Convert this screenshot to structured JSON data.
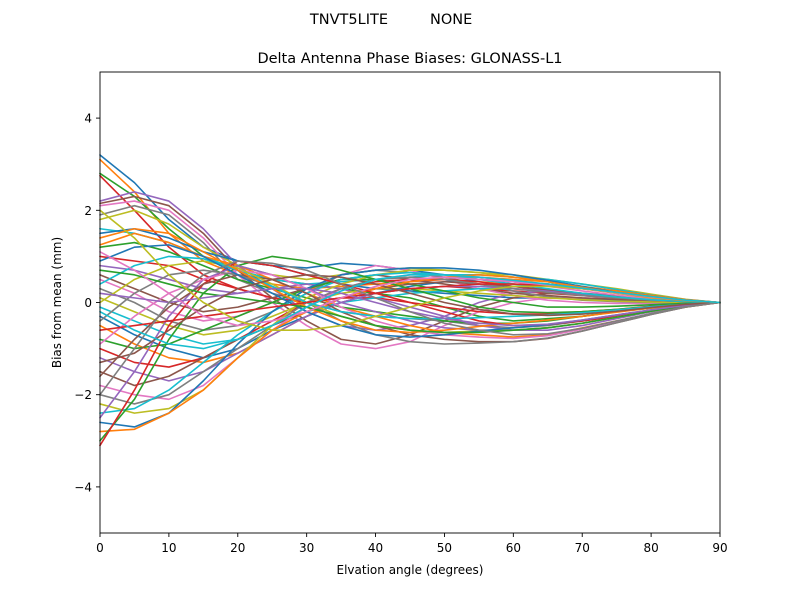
{
  "figure": {
    "suptitle_left": "TNVT5LITE",
    "suptitle_right": "NONE"
  },
  "chart_data": {
    "type": "line",
    "title": "Delta Antenna Phase Biases: GLONASS-L1",
    "xlabel": "Elvation angle (degrees)",
    "ylabel": "Bias from mean (mm)",
    "xlim": [
      0,
      90
    ],
    "ylim": [
      -5,
      5
    ],
    "xticks": [
      0,
      10,
      20,
      30,
      40,
      50,
      60,
      70,
      80,
      90
    ],
    "xtick_labels": [
      "0",
      "10",
      "20",
      "30",
      "40",
      "50",
      "60",
      "70",
      "80",
      "90"
    ],
    "yticks": [
      -4,
      -2,
      0,
      2,
      4
    ],
    "ytick_labels": [
      "−4",
      "−2",
      "0",
      "2",
      "4"
    ],
    "grid": false,
    "legend": "none",
    "colors": [
      "#1f77b4",
      "#ff7f0e",
      "#2ca02c",
      "#d62728",
      "#9467bd",
      "#8c564b",
      "#e377c2",
      "#7f7f7f",
      "#bcbd22",
      "#17becf"
    ],
    "x": [
      0,
      5,
      10,
      15,
      20,
      25,
      30,
      35,
      40,
      45,
      50,
      55,
      60,
      65,
      70,
      75,
      80,
      85,
      90
    ],
    "series": [
      {
        "values": [
          3.2,
          2.6,
          1.8,
          1.2,
          0.9,
          0.8,
          0.6,
          0.4,
          0.3,
          0.25,
          0.2,
          0.15,
          0.1,
          0.1,
          0.08,
          0.05,
          0.03,
          0.01,
          0
        ]
      },
      {
        "values": [
          3.1,
          2.4,
          1.5,
          0.9,
          0.6,
          0.4,
          0.3,
          0.35,
          0.4,
          0.45,
          0.5,
          0.45,
          0.4,
          0.35,
          0.3,
          0.2,
          0.12,
          0.05,
          0
        ]
      },
      {
        "values": [
          2.8,
          2.3,
          1.6,
          1.0,
          0.7,
          0.5,
          0.4,
          0.3,
          0.2,
          0.1,
          -0.1,
          -0.3,
          -0.4,
          -0.35,
          -0.3,
          -0.2,
          -0.1,
          -0.05,
          0
        ]
      },
      {
        "values": [
          2.75,
          2.0,
          1.2,
          0.6,
          0.3,
          0.1,
          0.0,
          0.1,
          0.2,
          0.3,
          0.35,
          0.3,
          0.25,
          0.2,
          0.15,
          0.1,
          0.05,
          0.02,
          0
        ]
      },
      {
        "values": [
          2.2,
          2.4,
          2.2,
          1.6,
          0.8,
          0.3,
          -0.2,
          -0.5,
          -0.6,
          -0.5,
          -0.3,
          0.0,
          0.2,
          0.25,
          0.2,
          0.15,
          0.08,
          0.03,
          0
        ]
      },
      {
        "values": [
          2.15,
          2.3,
          2.1,
          1.5,
          0.7,
          0.1,
          -0.4,
          -0.8,
          -0.9,
          -0.7,
          -0.4,
          -0.1,
          0.1,
          0.2,
          0.18,
          0.12,
          0.07,
          0.03,
          0
        ]
      },
      {
        "values": [
          2.1,
          2.2,
          2.0,
          1.4,
          0.6,
          0.0,
          -0.5,
          -0.9,
          -1.0,
          -0.85,
          -0.5,
          -0.2,
          0.0,
          0.1,
          0.1,
          0.08,
          0.05,
          0.02,
          0
        ]
      },
      {
        "values": [
          1.9,
          2.1,
          1.9,
          1.3,
          0.5,
          0.2,
          0.0,
          -0.2,
          -0.3,
          -0.35,
          -0.4,
          -0.5,
          -0.55,
          -0.5,
          -0.4,
          -0.3,
          -0.2,
          -0.08,
          0
        ]
      },
      {
        "values": [
          1.8,
          2.0,
          1.7,
          1.2,
          0.8,
          0.6,
          0.5,
          0.6,
          0.7,
          0.75,
          0.7,
          0.65,
          0.6,
          0.5,
          0.4,
          0.3,
          0.18,
          0.07,
          0
        ]
      },
      {
        "values": [
          1.6,
          1.5,
          1.3,
          1.0,
          0.7,
          0.5,
          0.4,
          0.45,
          0.5,
          0.55,
          0.6,
          0.6,
          0.55,
          0.5,
          0.4,
          0.28,
          0.16,
          0.06,
          0
        ]
      },
      {
        "values": [
          1.5,
          1.6,
          1.4,
          1.1,
          0.9,
          0.8,
          0.75,
          0.85,
          0.8,
          0.7,
          0.6,
          0.5,
          0.45,
          0.4,
          0.33,
          0.25,
          0.15,
          0.06,
          0
        ]
      },
      {
        "values": [
          1.25,
          1.5,
          1.3,
          1.0,
          0.8,
          0.5,
          0.2,
          -0.1,
          -0.3,
          -0.5,
          -0.65,
          -0.7,
          -0.75,
          -0.7,
          -0.55,
          -0.4,
          -0.25,
          -0.1,
          0
        ]
      },
      {
        "values": [
          1.2,
          1.3,
          1.1,
          0.8,
          0.5,
          0.3,
          0.1,
          -0.1,
          -0.2,
          -0.3,
          -0.4,
          -0.45,
          -0.45,
          -0.4,
          -0.3,
          -0.2,
          -0.12,
          -0.05,
          0
        ]
      },
      {
        "values": [
          1.0,
          0.9,
          0.8,
          0.5,
          0.3,
          0.1,
          0.0,
          0.1,
          0.1,
          0.0,
          -0.1,
          -0.2,
          -0.25,
          -0.25,
          -0.2,
          -0.15,
          -0.08,
          -0.03,
          0
        ]
      },
      {
        "values": [
          0.8,
          0.7,
          0.5,
          0.3,
          0.2,
          0.3,
          0.4,
          0.3,
          0.1,
          -0.1,
          -0.3,
          -0.5,
          -0.6,
          -0.6,
          -0.5,
          -0.35,
          -0.2,
          -0.08,
          0
        ]
      },
      {
        "values": [
          0.6,
          0.3,
          0.0,
          -0.2,
          -0.1,
          0.1,
          0.3,
          0.5,
          0.6,
          0.5,
          0.4,
          0.3,
          0.2,
          0.15,
          0.1,
          0.07,
          0.04,
          0.02,
          0
        ]
      },
      {
        "values": [
          0.5,
          0.2,
          -0.2,
          -0.4,
          -0.3,
          0.0,
          0.3,
          0.6,
          0.8,
          0.7,
          0.5,
          0.3,
          0.15,
          0.05,
          0.0,
          -0.02,
          -0.02,
          -0.01,
          0
        ]
      },
      {
        "values": [
          0.3,
          0.0,
          -0.4,
          -0.6,
          -0.5,
          -0.2,
          0.2,
          0.6,
          0.7,
          0.65,
          0.55,
          0.4,
          0.25,
          0.12,
          0.05,
          0.02,
          0.0,
          0.0,
          0
        ]
      },
      {
        "values": [
          0.1,
          -0.2,
          -0.5,
          -0.7,
          -0.6,
          -0.3,
          0.0,
          0.2,
          0.3,
          0.3,
          0.25,
          0.2,
          0.15,
          0.1,
          0.06,
          0.03,
          0.01,
          0.0,
          0
        ]
      },
      {
        "values": [
          -0.1,
          -0.4,
          -0.7,
          -0.9,
          -0.8,
          -0.5,
          -0.2,
          0.0,
          0.1,
          0.2,
          0.25,
          0.3,
          0.3,
          0.25,
          0.2,
          0.14,
          0.08,
          0.03,
          0
        ]
      },
      {
        "values": [
          -0.3,
          -0.7,
          -1.0,
          -1.2,
          -1.0,
          -0.6,
          -0.3,
          0.0,
          0.2,
          0.35,
          0.45,
          0.5,
          0.45,
          0.4,
          0.32,
          0.23,
          0.14,
          0.05,
          0
        ]
      },
      {
        "values": [
          -0.5,
          -0.9,
          -1.2,
          -1.3,
          -1.1,
          -0.7,
          -0.3,
          0.1,
          0.3,
          0.45,
          0.55,
          0.55,
          0.5,
          0.45,
          0.35,
          0.25,
          0.15,
          0.06,
          0
        ]
      },
      {
        "values": [
          -0.8,
          -1.0,
          -0.9,
          -0.6,
          -0.3,
          0.0,
          0.3,
          0.5,
          0.5,
          0.4,
          0.25,
          0.1,
          0.0,
          -0.1,
          -0.1,
          -0.08,
          -0.05,
          -0.02,
          0
        ]
      },
      {
        "values": [
          -1.0,
          -1.3,
          -1.4,
          -1.2,
          -0.8,
          -0.4,
          0.0,
          0.3,
          0.45,
          0.5,
          0.5,
          0.45,
          0.35,
          0.25,
          0.17,
          0.1,
          0.05,
          0.02,
          0
        ]
      },
      {
        "values": [
          -1.2,
          -1.5,
          -1.7,
          -1.5,
          -1.1,
          -0.7,
          -0.3,
          0.0,
          0.2,
          0.3,
          0.35,
          0.35,
          0.3,
          0.25,
          0.18,
          0.12,
          0.06,
          0.02,
          0
        ]
      },
      {
        "values": [
          -1.5,
          -1.8,
          -1.6,
          -1.2,
          -0.8,
          -0.5,
          -0.2,
          0.1,
          0.3,
          0.4,
          0.45,
          0.4,
          0.35,
          0.28,
          0.2,
          0.13,
          0.07,
          0.03,
          0
        ]
      },
      {
        "values": [
          -1.8,
          -2.0,
          -2.1,
          -1.8,
          -1.2,
          -0.6,
          -0.1,
          0.3,
          0.5,
          0.6,
          0.6,
          0.55,
          0.45,
          0.35,
          0.25,
          0.16,
          0.08,
          0.03,
          0
        ]
      },
      {
        "values": [
          -2.0,
          -2.2,
          -2.0,
          -1.5,
          -1.0,
          -0.5,
          0.0,
          0.3,
          0.5,
          0.55,
          0.5,
          0.4,
          0.3,
          0.22,
          0.15,
          0.1,
          0.05,
          0.02,
          0
        ]
      },
      {
        "values": [
          -2.2,
          -2.4,
          -2.3,
          -1.9,
          -1.2,
          -0.5,
          0.1,
          0.4,
          0.6,
          0.7,
          0.7,
          0.65,
          0.55,
          0.45,
          0.32,
          0.2,
          0.1,
          0.04,
          0
        ]
      },
      {
        "values": [
          -2.4,
          -2.3,
          -1.9,
          -1.3,
          -0.7,
          -0.2,
          0.2,
          0.5,
          0.6,
          0.65,
          0.6,
          0.5,
          0.4,
          0.3,
          0.2,
          0.12,
          0.06,
          0.02,
          0
        ]
      },
      {
        "values": [
          -2.6,
          -2.7,
          -2.4,
          -1.7,
          -0.9,
          -0.2,
          0.3,
          0.6,
          0.7,
          0.75,
          0.75,
          0.7,
          0.6,
          0.48,
          0.35,
          0.22,
          0.12,
          0.05,
          0
        ]
      },
      {
        "values": [
          -2.8,
          -2.75,
          -2.4,
          -1.9,
          -1.2,
          -0.6,
          -0.2,
          0.1,
          0.3,
          0.45,
          0.55,
          0.6,
          0.55,
          0.45,
          0.33,
          0.21,
          0.11,
          0.04,
          0
        ]
      },
      {
        "values": [
          -3.0,
          -2.1,
          -0.8,
          0.2,
          0.8,
          1.0,
          0.9,
          0.7,
          0.5,
          0.3,
          0.1,
          -0.1,
          -0.2,
          -0.22,
          -0.2,
          -0.15,
          -0.09,
          -0.04,
          0
        ]
      },
      {
        "values": [
          -3.1,
          -1.9,
          -0.5,
          0.4,
          0.9,
          0.8,
          0.6,
          0.4,
          0.2,
          0.0,
          -0.2,
          -0.4,
          -0.5,
          -0.48,
          -0.4,
          -0.3,
          -0.18,
          -0.07,
          0
        ]
      },
      {
        "values": [
          -2.5,
          -1.5,
          -0.3,
          0.5,
          0.8,
          0.6,
          0.3,
          0.0,
          -0.2,
          -0.4,
          -0.55,
          -0.6,
          -0.6,
          -0.55,
          -0.45,
          -0.32,
          -0.19,
          -0.08,
          0
        ]
      },
      {
        "values": [
          -1.6,
          -0.8,
          -0.1,
          0.4,
          0.6,
          0.5,
          0.2,
          -0.2,
          -0.5,
          -0.7,
          -0.8,
          -0.85,
          -0.85,
          -0.78,
          -0.62,
          -0.44,
          -0.26,
          -0.1,
          0
        ]
      },
      {
        "values": [
          -0.9,
          -0.3,
          0.2,
          0.5,
          0.7,
          0.6,
          0.3,
          -0.1,
          -0.4,
          -0.6,
          -0.7,
          -0.75,
          -0.78,
          -0.72,
          -0.58,
          -0.41,
          -0.24,
          -0.09,
          0
        ]
      },
      {
        "values": [
          -0.4,
          0.2,
          0.6,
          0.7,
          0.6,
          0.35,
          0.0,
          -0.4,
          -0.7,
          -0.85,
          -0.9,
          -0.88,
          -0.85,
          -0.77,
          -0.62,
          -0.44,
          -0.26,
          -0.1,
          0
        ]
      },
      {
        "values": [
          0.0,
          0.5,
          0.8,
          0.9,
          0.75,
          0.4,
          0.0,
          -0.3,
          -0.5,
          -0.6,
          -0.65,
          -0.62,
          -0.6,
          -0.55,
          -0.45,
          -0.32,
          -0.19,
          -0.07,
          0
        ]
      },
      {
        "values": [
          0.4,
          0.8,
          1.0,
          0.95,
          0.7,
          0.35,
          0.0,
          -0.2,
          -0.3,
          -0.35,
          -0.35,
          -0.33,
          -0.3,
          -0.27,
          -0.22,
          -0.16,
          -0.09,
          -0.04,
          0
        ]
      },
      {
        "values": [
          0.9,
          1.2,
          1.25,
          1.0,
          0.6,
          0.2,
          -0.2,
          -0.5,
          -0.7,
          -0.75,
          -0.7,
          -0.62,
          -0.55,
          -0.48,
          -0.38,
          -0.27,
          -0.16,
          -0.06,
          0
        ]
      },
      {
        "values": [
          1.4,
          1.6,
          1.5,
          1.1,
          0.7,
          0.3,
          -0.1,
          -0.4,
          -0.6,
          -0.65,
          -0.6,
          -0.52,
          -0.45,
          -0.38,
          -0.3,
          -0.21,
          -0.12,
          -0.05,
          0
        ]
      },
      {
        "values": [
          0.7,
          0.6,
          0.4,
          0.2,
          0.1,
          0.0,
          -0.1,
          -0.3,
          -0.5,
          -0.6,
          -0.65,
          -0.65,
          -0.6,
          -0.55,
          -0.45,
          -0.32,
          -0.19,
          -0.07,
          0
        ]
      },
      {
        "values": [
          -0.6,
          -0.5,
          -0.4,
          -0.3,
          -0.2,
          -0.1,
          0.0,
          0.1,
          0.2,
          0.3,
          0.35,
          0.4,
          0.4,
          0.37,
          0.3,
          0.22,
          0.13,
          0.05,
          0
        ]
      },
      {
        "values": [
          0.2,
          0.1,
          0.0,
          0.1,
          0.2,
          0.3,
          0.3,
          0.2,
          0.0,
          -0.2,
          -0.35,
          -0.45,
          -0.5,
          -0.47,
          -0.38,
          -0.27,
          -0.16,
          -0.06,
          0
        ]
      },
      {
        "values": [
          -1.3,
          -1.1,
          -0.6,
          -0.1,
          0.3,
          0.5,
          0.6,
          0.55,
          0.4,
          0.2,
          0.0,
          -0.15,
          -0.25,
          -0.28,
          -0.25,
          -0.19,
          -0.11,
          -0.04,
          0
        ]
      },
      {
        "values": [
          1.1,
          0.7,
          0.2,
          -0.3,
          -0.5,
          -0.4,
          -0.2,
          0.1,
          0.35,
          0.5,
          0.55,
          0.5,
          0.45,
          0.38,
          0.3,
          0.21,
          0.12,
          0.05,
          0
        ]
      },
      {
        "values": [
          -2.0,
          -1.0,
          0.0,
          0.6,
          0.9,
          0.85,
          0.7,
          0.4,
          0.1,
          -0.2,
          -0.45,
          -0.6,
          -0.7,
          -0.68,
          -0.56,
          -0.4,
          -0.24,
          -0.09,
          0
        ]
      },
      {
        "values": [
          2.0,
          1.4,
          0.6,
          0.0,
          -0.4,
          -0.6,
          -0.6,
          -0.5,
          -0.3,
          -0.1,
          0.1,
          0.25,
          0.35,
          0.35,
          0.3,
          0.22,
          0.13,
          0.05,
          0
        ]
      },
      {
        "values": [
          -0.2,
          -0.6,
          -0.9,
          -1.0,
          -0.8,
          -0.5,
          -0.1,
          0.25,
          0.5,
          0.6,
          0.6,
          0.55,
          0.48,
          0.4,
          0.31,
          0.22,
          0.13,
          0.05,
          0
        ]
      }
    ]
  }
}
